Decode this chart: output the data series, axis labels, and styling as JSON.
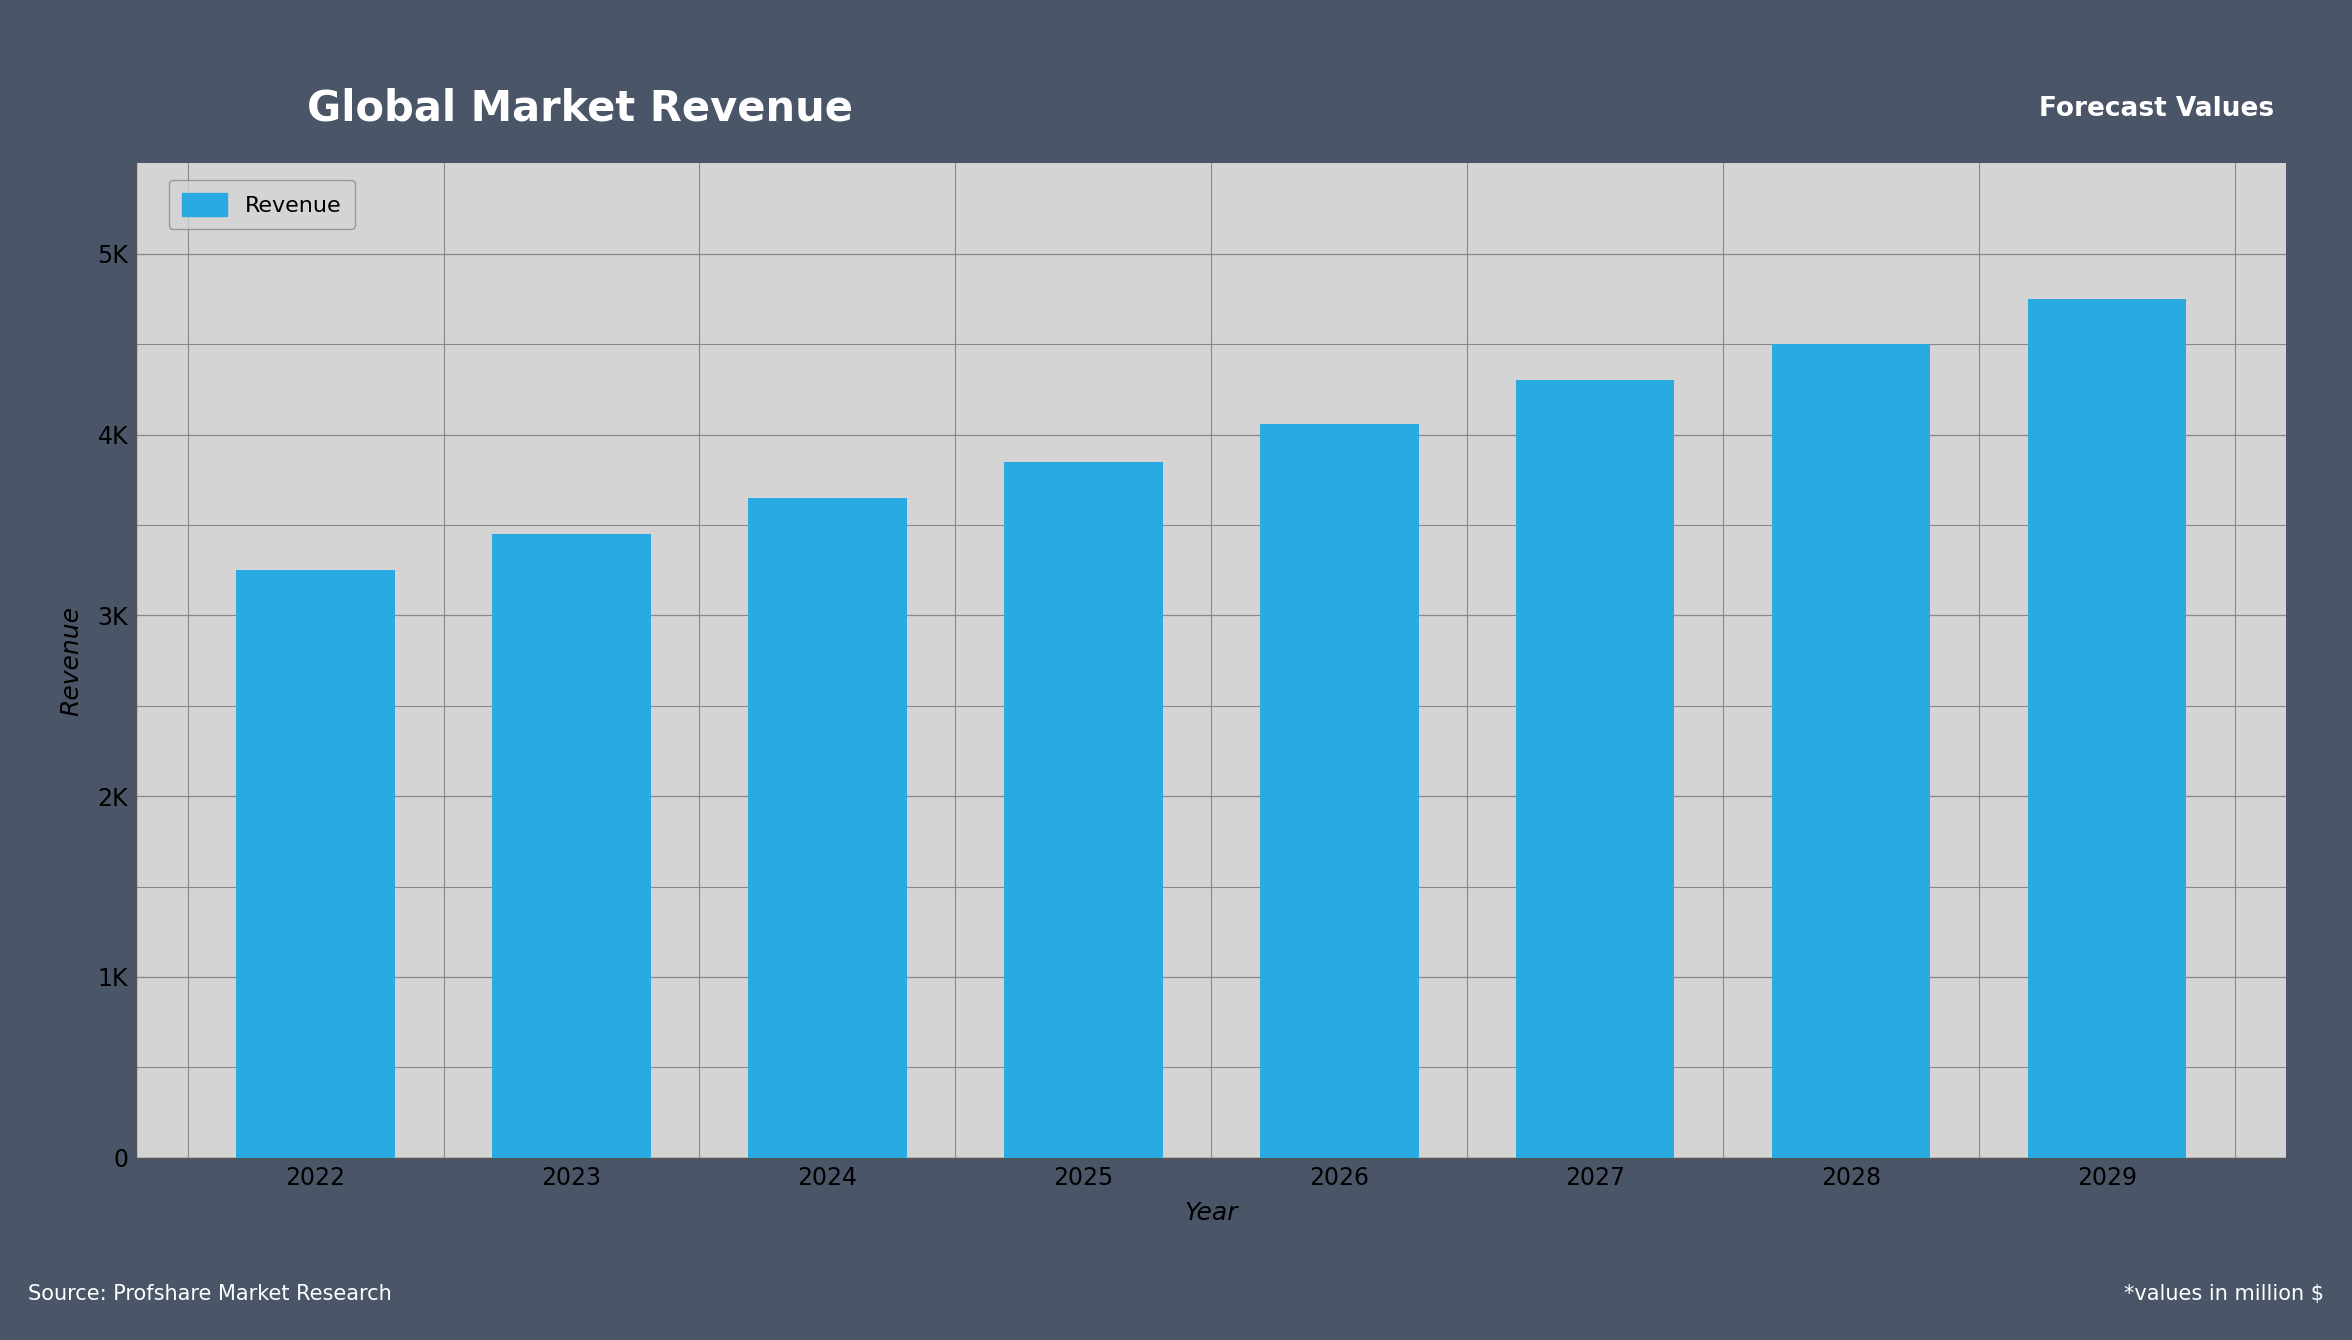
{
  "years": [
    2022,
    2023,
    2024,
    2025,
    2026,
    2027,
    2028,
    2029
  ],
  "values": [
    3250,
    3450,
    3650,
    3850,
    4060,
    4300,
    4500,
    4750
  ],
  "bar_color": "#29ABE2",
  "title": "Global Market Revenue",
  "title_bg_color": "#5B7DB1",
  "title_text_color": "white",
  "xlabel": "Year",
  "ylabel": "Revenue",
  "ylim": [
    0,
    5500
  ],
  "yticks": [
    0,
    1000,
    2000,
    3000,
    4000,
    5000
  ],
  "ytick_labels": [
    "0",
    "1K",
    "2K",
    "3K",
    "4K",
    "5K"
  ],
  "legend_label": "Revenue",
  "outer_bg_color": "#4A5568",
  "plot_bg_color": "#D4D4D4",
  "footer_bg_color": "#3A4256",
  "source_text": "Source: Profshare Market Research",
  "forecast_text": "Forecast Values",
  "footnote_text": "*values in million $",
  "grid_color": "#888888",
  "tick_color": "black",
  "axis_label_fontsize": 18,
  "title_fontsize": 30,
  "tick_fontsize": 17,
  "legend_fontsize": 16,
  "footer_fontsize": 15
}
